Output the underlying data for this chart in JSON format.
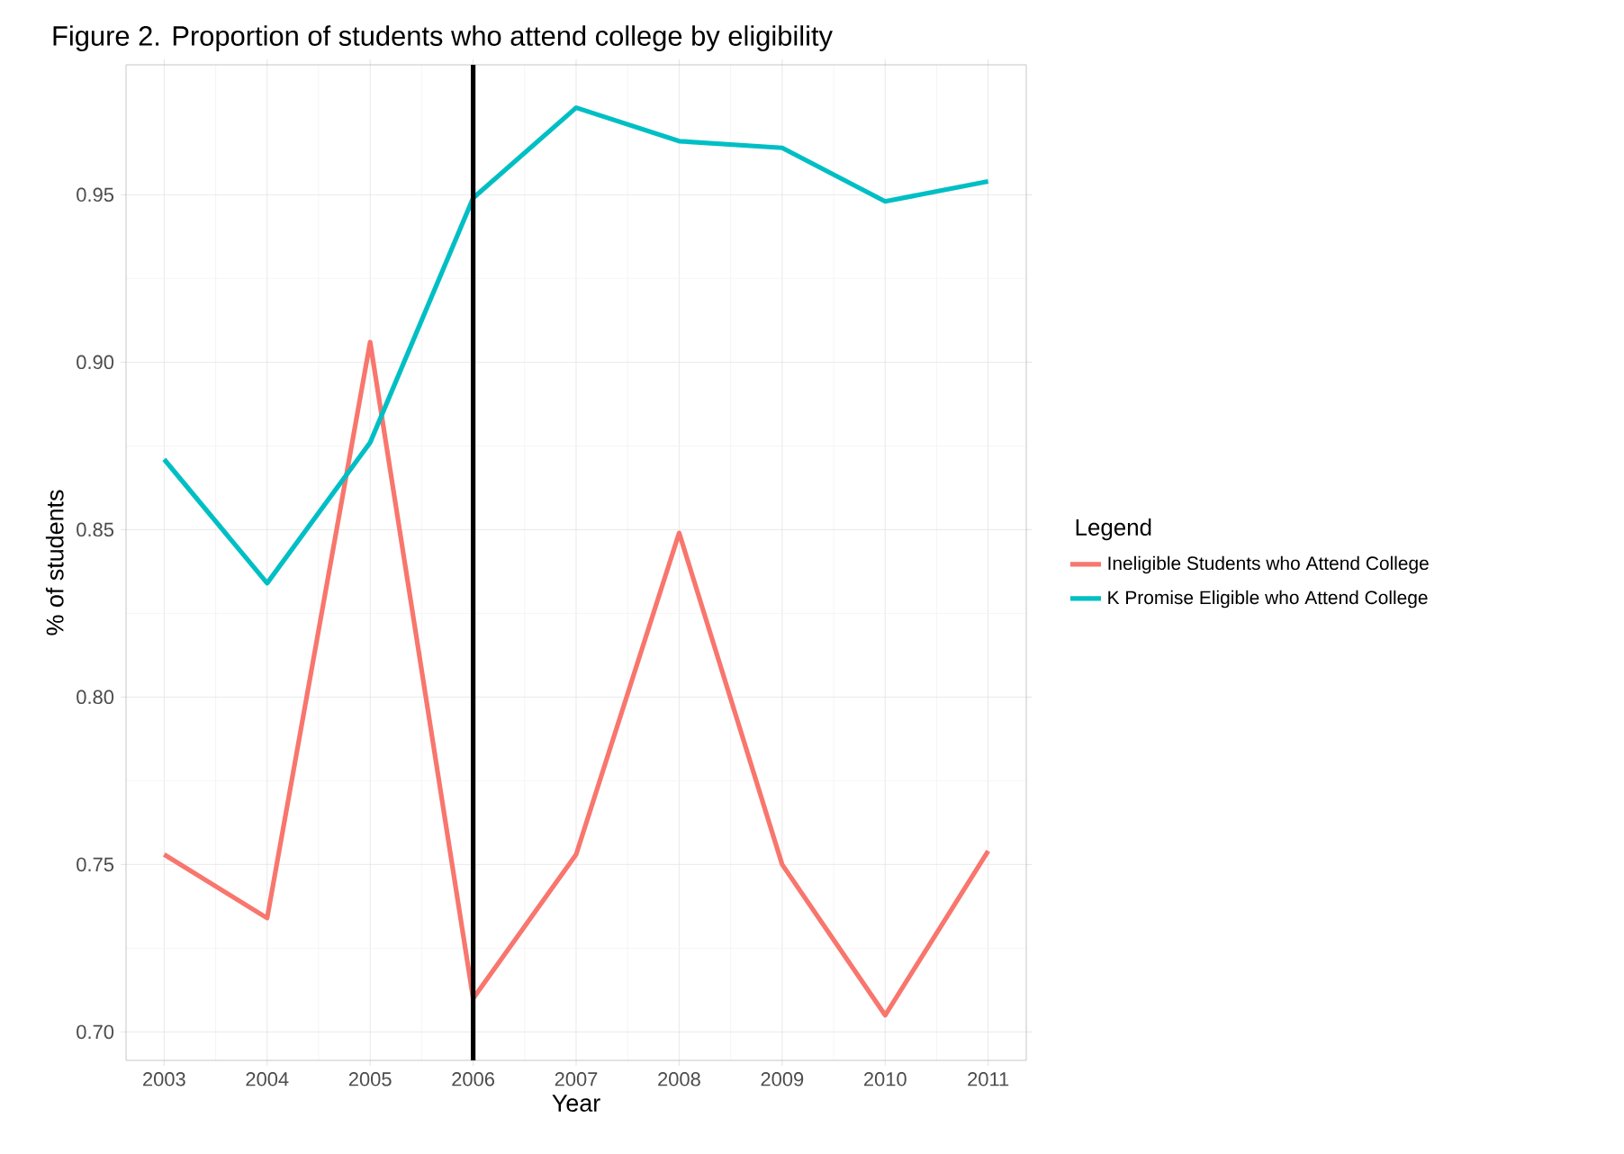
{
  "chart_data": {
    "type": "line",
    "title": "Figure 2. Proportion of students who attend college by eligibility",
    "xlabel": "Year",
    "ylabel": "% of students",
    "legend_title": "Legend",
    "legend": "right",
    "grid": true,
    "x": [
      2003,
      2004,
      2005,
      2006,
      2007,
      2008,
      2009,
      2010,
      2011
    ],
    "series": [
      {
        "name": "Ineligible Students who Attend College",
        "color": "#f8766d",
        "values": [
          0.753,
          0.734,
          0.906,
          0.71,
          0.753,
          0.849,
          0.75,
          0.705,
          0.754
        ]
      },
      {
        "name": "K Promise Eligible who Attend College",
        "color": "#00bfc4",
        "values": [
          0.871,
          0.834,
          0.876,
          0.949,
          0.976,
          0.966,
          0.964,
          0.948,
          0.954
        ]
      }
    ],
    "xlim": [
      2002.63,
      2011.37
    ],
    "ylim": [
      0.6915,
      0.9888
    ],
    "xticks": [
      2003,
      2004,
      2005,
      2006,
      2007,
      2008,
      2009,
      2010,
      2011
    ],
    "yticks": [
      {
        "value": 0.7,
        "label": "0.70"
      },
      {
        "value": 0.75,
        "label": "0.75"
      },
      {
        "value": 0.8,
        "label": "0.80"
      },
      {
        "value": 0.85,
        "label": "0.85"
      },
      {
        "value": 0.9,
        "label": "0.90"
      },
      {
        "value": 0.95,
        "label": "0.95"
      }
    ],
    "ref_lines": [
      {
        "axis": "x",
        "value": 2006,
        "color": "#000000"
      }
    ]
  }
}
